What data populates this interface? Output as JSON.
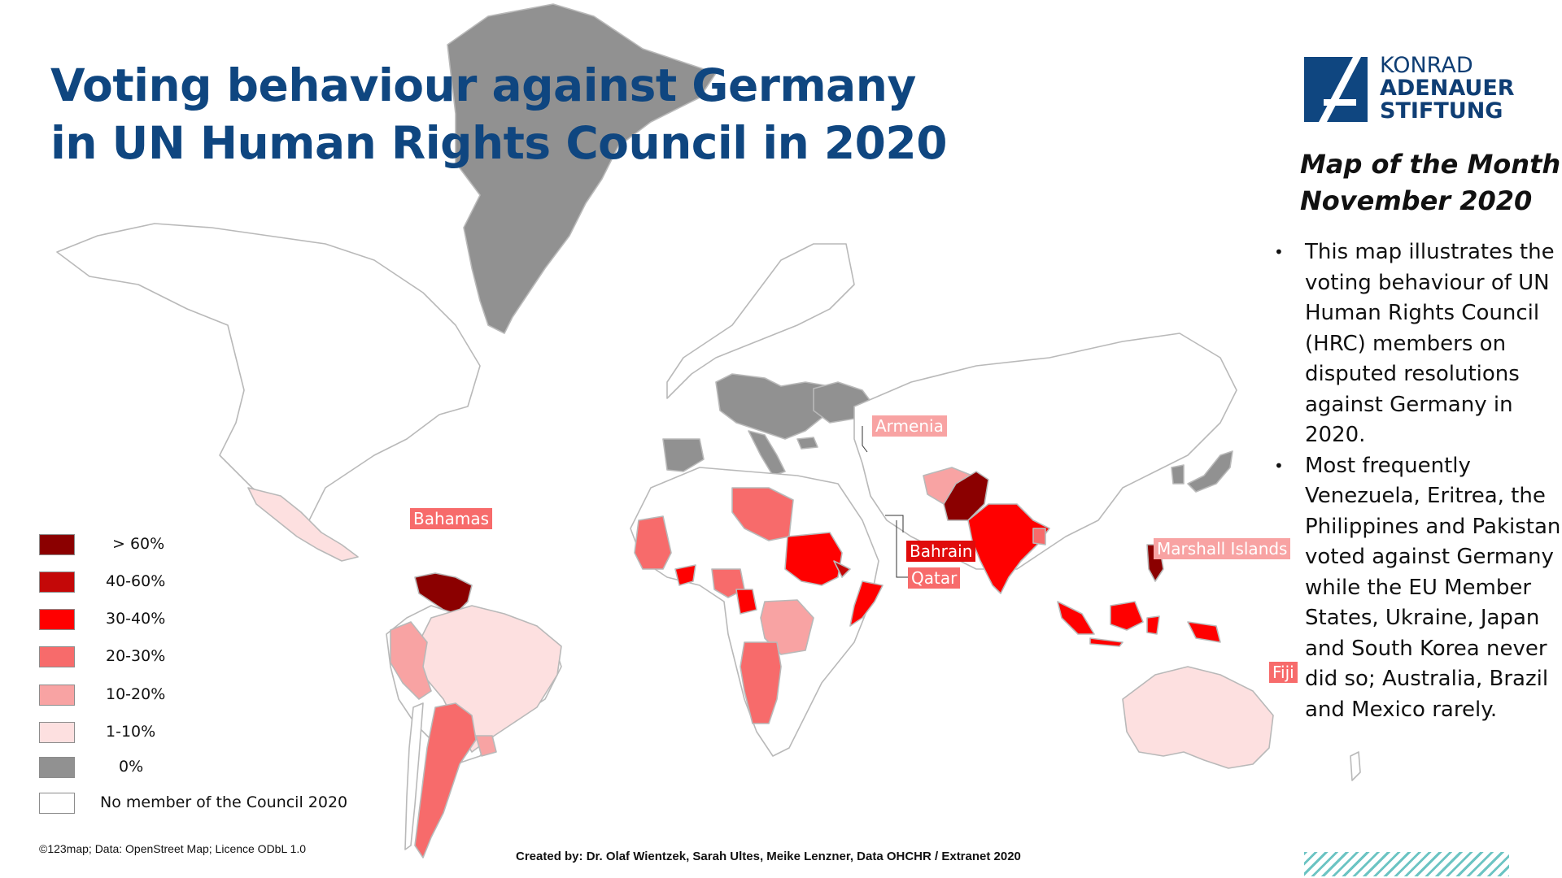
{
  "title": {
    "line1": "Voting behaviour against Germany",
    "line2": "in UN Human Rights Council in 2020"
  },
  "logo": {
    "line1": "KONRAD",
    "line2": "ADENAUER",
    "line3": "STIFTUNG",
    "color": "#0f4680"
  },
  "map_of_month": {
    "line1": "Map of the Month",
    "line2": "November 2020"
  },
  "bullets": [
    "This map illustrates the voting behaviour of UN Human Rights Council (HRC) members on disputed resolutions against Germany in 2020.",
    "Most frequently Venezuela, Eritrea, the Philippines and Pakistan voted against Germany while the EU Member States, Ukraine, Japan and South Korea never did so; Australia, Brazil and Mexico rarely."
  ],
  "legend": [
    {
      "label": "> 60%",
      "color": "#8b0000"
    },
    {
      "label": "40-60%",
      "color": "#c40808"
    },
    {
      "label": "30-40%",
      "color": "#ff0000"
    },
    {
      "label": "20-30%",
      "color": "#f76b6b"
    },
    {
      "label": "10-20%",
      "color": "#f8a3a3"
    },
    {
      "label": "1-10%",
      "color": "#fde0e0"
    },
    {
      "label": "0%",
      "color": "#919191"
    },
    {
      "label": "No member of the Council 2020",
      "color": "#ffffff"
    }
  ],
  "country_labels": {
    "armenia": "Armenia",
    "bahamas": "Bahamas",
    "bahrain": "Bahrain",
    "qatar": "Qatar",
    "marshall": "Marshall Islands",
    "fiji": "Fiji"
  },
  "footer": {
    "credit": "©123map; Data: OpenStreet Map; Licence ODbL 1.0",
    "created": "Created by: Dr. Olaf Wientzek, Sarah Ultes, Meike Lenzner, Data OHCHR / Extranet 2020"
  }
}
